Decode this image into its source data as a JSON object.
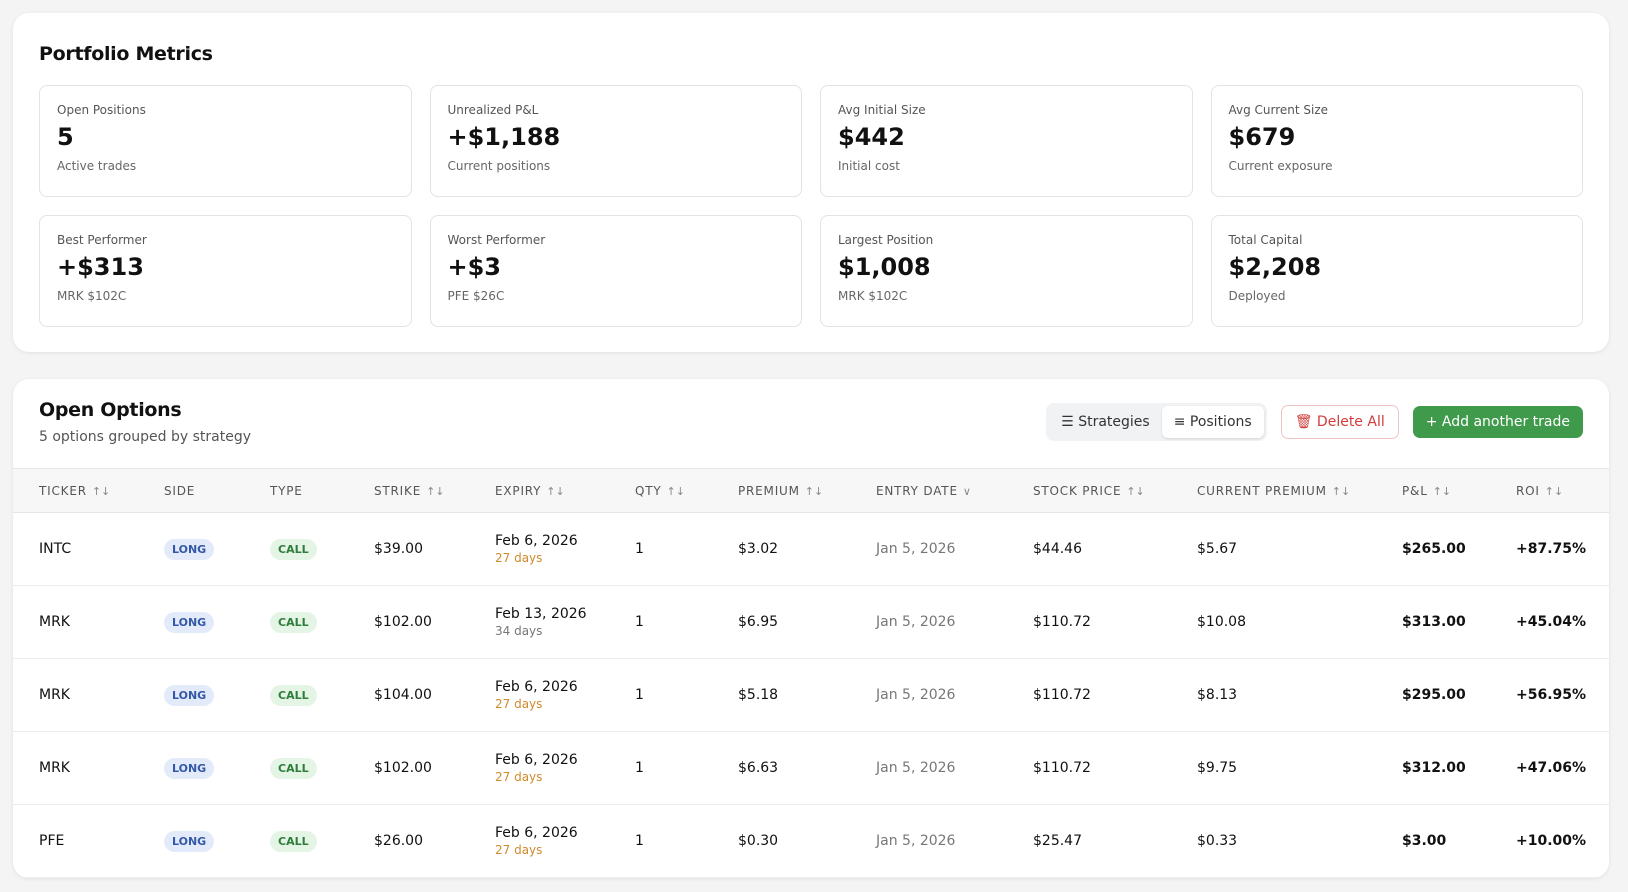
{
  "metrics": {
    "title": "Portfolio Metrics",
    "cards": [
      {
        "label": "Open Positions",
        "value": "5",
        "note": "Active trades"
      },
      {
        "label": "Unrealized P&L",
        "value": "+$1,188",
        "note": "Current positions"
      },
      {
        "label": "Avg Initial Size",
        "value": "$442",
        "note": "Initial cost"
      },
      {
        "label": "Avg Current Size",
        "value": "$679",
        "note": "Current exposure"
      },
      {
        "label": "Best Performer",
        "value": "+$313",
        "note": "MRK $102C"
      },
      {
        "label": "Worst Performer",
        "value": "+$3",
        "note": "PFE $26C"
      },
      {
        "label": "Largest Position",
        "value": "$1,008",
        "note": "MRK $102C"
      },
      {
        "label": "Total Capital",
        "value": "$2,208",
        "note": "Deployed"
      }
    ]
  },
  "options": {
    "title": "Open Options",
    "subtitle": "5 options grouped by strategy",
    "view_buttons": [
      "Strategies",
      "Positions"
    ],
    "delete_button": "Delete All",
    "add_button": "Add another trade",
    "columns": [
      {
        "label": "TICKER",
        "sort": "arrows"
      },
      {
        "label": "SIDE",
        "sort": "none"
      },
      {
        "label": "TYPE",
        "sort": "none"
      },
      {
        "label": "STRIKE",
        "sort": "arrows"
      },
      {
        "label": "EXPIRY",
        "sort": "arrows"
      },
      {
        "label": "QTY",
        "sort": "arrows"
      },
      {
        "label": "PREMIUM",
        "sort": "arrows"
      },
      {
        "label": "ENTRY DATE",
        "sort": "down"
      },
      {
        "label": "STOCK PRICE",
        "sort": "arrows"
      },
      {
        "label": "CURRENT PREMIUM",
        "sort": "arrows"
      },
      {
        "label": "P&L",
        "sort": "arrows"
      },
      {
        "label": "ROI",
        "sort": "arrows"
      }
    ],
    "rows": [
      {
        "ticker": "INTC",
        "side": "LONG",
        "type": "CALL",
        "strike": "$39.00",
        "expiry": "Feb 6, 2026",
        "days": "27 days",
        "days_color": "#d08a2b",
        "qty": "1",
        "premium": "$3.02",
        "entry": "Jan 5, 2026",
        "stock": "$44.46",
        "current": "$5.67",
        "pnl": "$265.00",
        "roi": "+87.75%"
      },
      {
        "ticker": "MRK",
        "side": "LONG",
        "type": "CALL",
        "strike": "$102.00",
        "expiry": "Feb 13, 2026",
        "days": "34 days",
        "days_color": "#777777",
        "qty": "1",
        "premium": "$6.95",
        "entry": "Jan 5, 2026",
        "stock": "$110.72",
        "current": "$10.08",
        "pnl": "$313.00",
        "roi": "+45.04%"
      },
      {
        "ticker": "MRK",
        "side": "LONG",
        "type": "CALL",
        "strike": "$104.00",
        "expiry": "Feb 6, 2026",
        "days": "27 days",
        "days_color": "#d08a2b",
        "qty": "1",
        "premium": "$5.18",
        "entry": "Jan 5, 2026",
        "stock": "$110.72",
        "current": "$8.13",
        "pnl": "$295.00",
        "roi": "+56.95%"
      },
      {
        "ticker": "MRK",
        "side": "LONG",
        "type": "CALL",
        "strike": "$102.00",
        "expiry": "Feb 6, 2026",
        "days": "27 days",
        "days_color": "#d08a2b",
        "qty": "1",
        "premium": "$6.63",
        "entry": "Jan 5, 2026",
        "stock": "$110.72",
        "current": "$9.75",
        "pnl": "$312.00",
        "roi": "+47.06%"
      },
      {
        "ticker": "PFE",
        "side": "LONG",
        "type": "CALL",
        "strike": "$26.00",
        "expiry": "Feb 6, 2026",
        "days": "27 days",
        "days_color": "#d08a2b",
        "qty": "1",
        "premium": "$0.30",
        "entry": "Jan 5, 2026",
        "stock": "$25.47",
        "current": "$0.33",
        "pnl": "$3.00",
        "roi": "+10.00%"
      }
    ]
  }
}
